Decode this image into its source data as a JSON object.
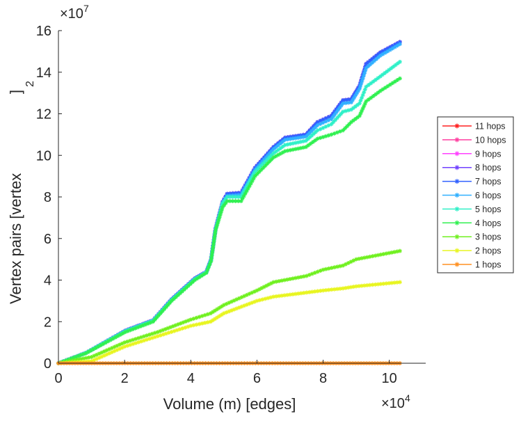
{
  "chart_data": {
    "type": "line",
    "title": "",
    "xlabel": "Volume (m) [edges]",
    "ylabel": "Vertex pairs [vertex",
    "ylabel_sup": "2",
    "ylabel_end": "]",
    "x_multiplier": {
      "base": "×10",
      "exp": "4"
    },
    "y_multiplier": {
      "base": "×10",
      "exp": "7"
    },
    "xlim": [
      0,
      11.1
    ],
    "ylim": [
      0,
      16
    ],
    "xticks": [
      "0",
      "2",
      "4",
      "6",
      "8",
      "10"
    ],
    "yticks": [
      "0",
      "2",
      "4",
      "6",
      "8",
      "10",
      "12",
      "14",
      "16"
    ],
    "grid": false,
    "legend_position": "outside-right",
    "series": [
      {
        "name": "11 hops",
        "color": "#ff2020",
        "x": [
          0,
          0.83,
          2.02,
          2.86,
          3.42,
          4.12,
          4.47,
          4.61,
          4.75,
          4.96,
          5.1,
          5.52,
          5.94,
          6.5,
          6.85,
          7.48,
          7.83,
          8.25,
          8.6,
          8.85,
          9.1,
          9.3,
          9.73,
          10.32
        ],
        "y": [
          0,
          0.5,
          1.57,
          2.07,
          3.08,
          4.08,
          4.4,
          4.98,
          6.5,
          7.76,
          8.15,
          8.2,
          9.4,
          10.4,
          10.85,
          11.0,
          11.6,
          11.9,
          12.65,
          12.7,
          13.35,
          14.4,
          14.95,
          15.45
        ]
      },
      {
        "name": "10 hops",
        "color": "#ff3fa0",
        "x": [
          0,
          0.83,
          2.02,
          2.86,
          3.42,
          4.12,
          4.47,
          4.61,
          4.75,
          4.96,
          5.1,
          5.52,
          5.94,
          6.5,
          6.85,
          7.48,
          7.83,
          8.25,
          8.6,
          8.85,
          9.1,
          9.3,
          9.73,
          10.32
        ],
        "y": [
          0,
          0.5,
          1.57,
          2.07,
          3.08,
          4.08,
          4.4,
          4.98,
          6.5,
          7.76,
          8.15,
          8.2,
          9.4,
          10.4,
          10.85,
          11.0,
          11.6,
          11.9,
          12.65,
          12.7,
          13.35,
          14.4,
          14.95,
          15.45
        ]
      },
      {
        "name": "9 hops",
        "color": "#ff3fff",
        "x": [
          0,
          0.83,
          2.02,
          2.86,
          3.42,
          4.12,
          4.47,
          4.61,
          4.75,
          4.96,
          5.1,
          5.52,
          5.94,
          6.5,
          6.85,
          7.48,
          7.83,
          8.25,
          8.6,
          8.85,
          9.1,
          9.3,
          9.73,
          10.32
        ],
        "y": [
          0,
          0.5,
          1.57,
          2.07,
          3.08,
          4.08,
          4.4,
          4.98,
          6.5,
          7.76,
          8.15,
          8.2,
          9.4,
          10.4,
          10.85,
          11.0,
          11.6,
          11.9,
          12.65,
          12.7,
          13.35,
          14.4,
          14.95,
          15.45
        ]
      },
      {
        "name": "8 hops",
        "color": "#7040ff",
        "x": [
          0,
          0.83,
          2.02,
          2.86,
          3.42,
          4.12,
          4.47,
          4.61,
          4.75,
          4.96,
          5.1,
          5.52,
          5.94,
          6.5,
          6.85,
          7.48,
          7.83,
          8.25,
          8.6,
          8.85,
          9.1,
          9.3,
          9.73,
          10.32
        ],
        "y": [
          0,
          0.5,
          1.57,
          2.07,
          3.08,
          4.08,
          4.4,
          4.98,
          6.5,
          7.76,
          8.15,
          8.2,
          9.4,
          10.4,
          10.85,
          11.0,
          11.6,
          11.9,
          12.65,
          12.7,
          13.35,
          14.4,
          14.95,
          15.45
        ]
      },
      {
        "name": "7 hops",
        "color": "#3060ff",
        "x": [
          0,
          0.83,
          2.02,
          2.86,
          3.42,
          4.12,
          4.47,
          4.61,
          4.75,
          4.96,
          5.1,
          5.52,
          5.94,
          6.5,
          6.85,
          7.48,
          7.83,
          8.25,
          8.6,
          8.85,
          9.1,
          9.3,
          9.73,
          10.32
        ],
        "y": [
          0,
          0.5,
          1.57,
          2.07,
          3.08,
          4.08,
          4.4,
          4.98,
          6.5,
          7.76,
          8.15,
          8.2,
          9.4,
          10.4,
          10.85,
          11.0,
          11.6,
          11.9,
          12.65,
          12.7,
          13.35,
          14.4,
          14.95,
          15.45
        ]
      },
      {
        "name": "6 hops",
        "color": "#30b0ff",
        "x": [
          0,
          0.83,
          2.02,
          2.86,
          3.42,
          4.12,
          4.47,
          4.61,
          4.75,
          4.96,
          5.1,
          5.52,
          5.94,
          6.5,
          6.85,
          7.48,
          7.83,
          8.25,
          8.6,
          8.85,
          9.1,
          9.3,
          9.73,
          10.32
        ],
        "y": [
          0,
          0.5,
          1.55,
          2.05,
          3.05,
          4.05,
          4.38,
          4.95,
          6.45,
          7.7,
          8.05,
          8.1,
          9.3,
          10.3,
          10.75,
          10.9,
          11.45,
          11.75,
          12.5,
          12.55,
          13.2,
          14.2,
          14.8,
          15.35
        ]
      },
      {
        "name": "5 hops",
        "color": "#30f0c8",
        "x": [
          0,
          0.83,
          2.02,
          2.86,
          3.42,
          4.12,
          4.47,
          4.61,
          4.75,
          4.96,
          5.1,
          5.52,
          5.94,
          6.5,
          6.85,
          7.48,
          7.83,
          8.25,
          8.6,
          8.85,
          9.1,
          9.3,
          9.73,
          10.32
        ],
        "y": [
          0,
          0.5,
          1.55,
          2.05,
          3.05,
          4.05,
          4.38,
          4.95,
          6.45,
          7.7,
          8.0,
          8.0,
          9.2,
          10.1,
          10.5,
          10.7,
          11.2,
          11.5,
          12.1,
          12.2,
          12.5,
          13.3,
          13.8,
          14.5
        ]
      },
      {
        "name": "4 hops",
        "color": "#30f050",
        "x": [
          0,
          0.83,
          2.02,
          2.86,
          3.42,
          4.12,
          4.47,
          4.61,
          4.75,
          4.96,
          5.1,
          5.52,
          5.94,
          6.5,
          6.85,
          7.48,
          7.83,
          8.25,
          8.6,
          8.85,
          9.1,
          9.3,
          9.73,
          10.32
        ],
        "y": [
          0,
          0.48,
          1.5,
          2.0,
          3.0,
          4.0,
          4.35,
          4.9,
          6.4,
          7.5,
          7.8,
          7.8,
          9.0,
          9.9,
          10.2,
          10.4,
          10.8,
          11.0,
          11.2,
          11.6,
          11.9,
          12.6,
          13.1,
          13.7
        ]
      },
      {
        "name": "3 hops",
        "color": "#70f020",
        "x": [
          0,
          1,
          2,
          3,
          4,
          4.6,
          5,
          6,
          6.5,
          7.5,
          8,
          8.6,
          9,
          10.32
        ],
        "y": [
          0,
          0.3,
          1.0,
          1.5,
          2.1,
          2.4,
          2.8,
          3.5,
          3.9,
          4.2,
          4.5,
          4.7,
          5.0,
          5.4
        ]
      },
      {
        "name": "2 hops",
        "color": "#e8f520",
        "x": [
          0,
          1,
          2,
          3,
          4,
          4.6,
          5,
          6,
          6.5,
          7.5,
          8,
          8.6,
          9,
          10.32
        ],
        "y": [
          0,
          0.1,
          0.8,
          1.3,
          1.8,
          2.0,
          2.4,
          3.0,
          3.2,
          3.4,
          3.5,
          3.6,
          3.7,
          3.9
        ]
      },
      {
        "name": "1 hops",
        "color": "#ff9020",
        "x": [
          0,
          10.32
        ],
        "y": [
          0,
          0
        ]
      }
    ]
  }
}
